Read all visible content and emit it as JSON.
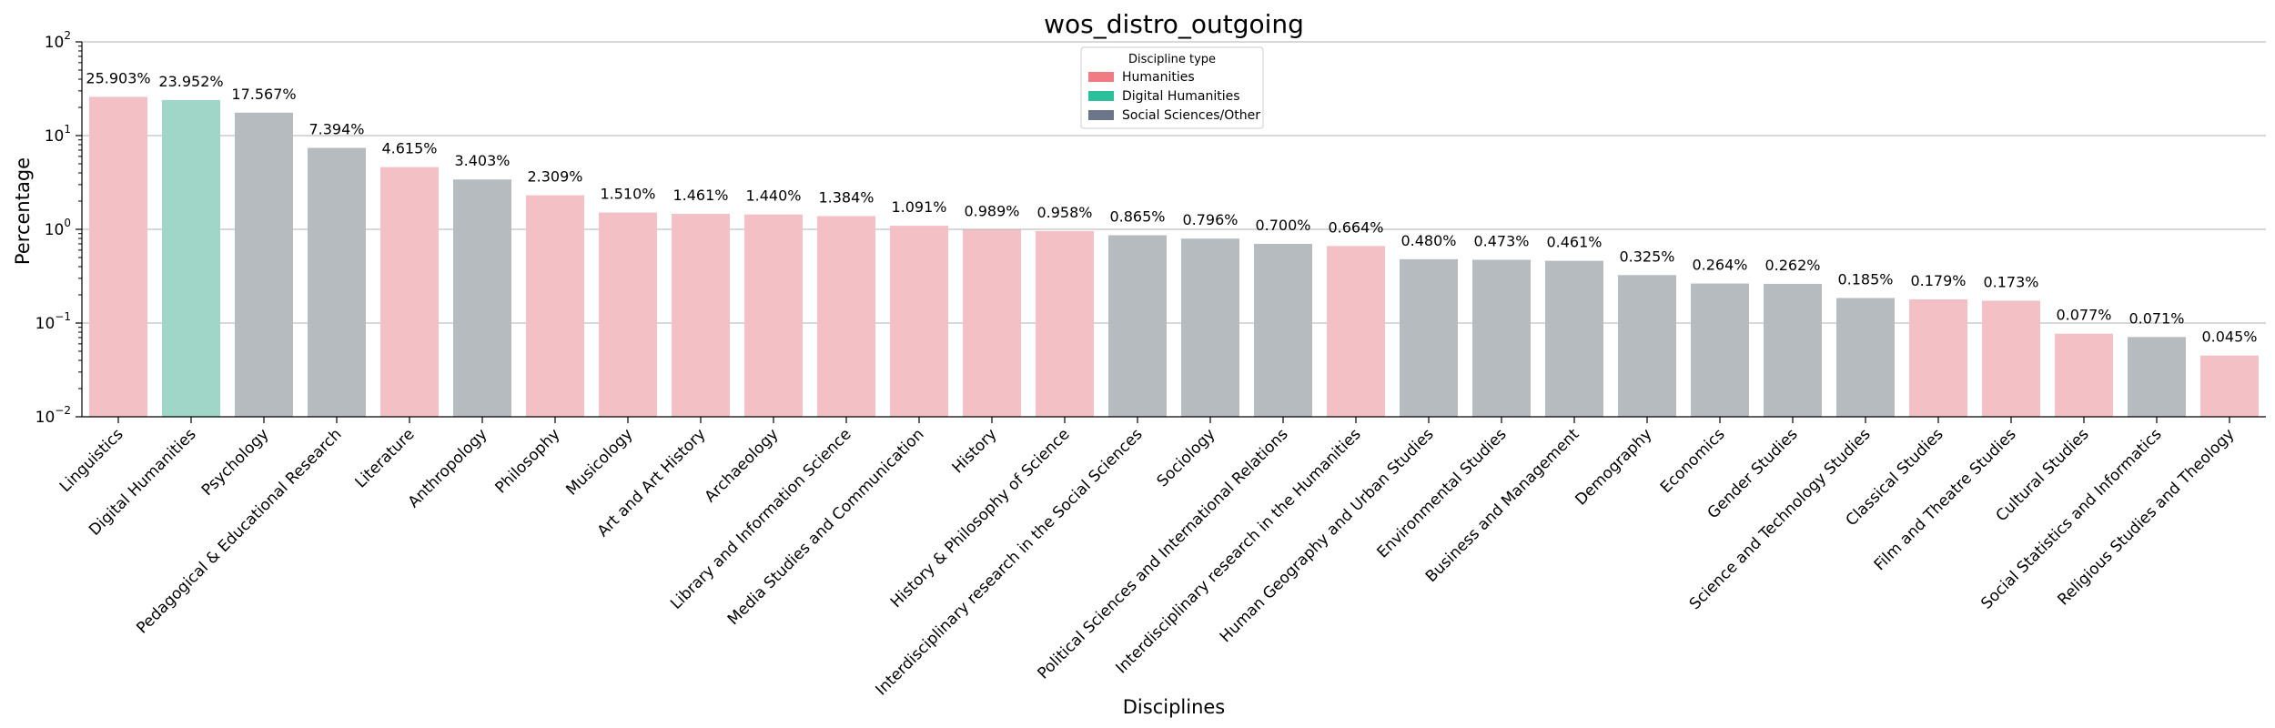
{
  "chart_data": {
    "type": "bar",
    "title": "wos_distro_outgoing",
    "xlabel": "Disciplines",
    "ylabel": "Percentage",
    "yscale": "log",
    "ylim": [
      0.01,
      100
    ],
    "yticks": [
      {
        "value": 0.01,
        "base": "10",
        "exp": "−2"
      },
      {
        "value": 0.1,
        "base": "10",
        "exp": "−1"
      },
      {
        "value": 1,
        "base": "10",
        "exp": "0"
      },
      {
        "value": 10,
        "base": "10",
        "exp": "1"
      },
      {
        "value": 100,
        "base": "10",
        "exp": "2"
      }
    ],
    "grid": "horizontal",
    "legend": {
      "title": "Discipline type",
      "placement": "top-center",
      "entries": [
        {
          "label": "Humanities",
          "color": "#f07b83"
        },
        {
          "label": "Digital Humanities",
          "color": "#2bbf9b"
        },
        {
          "label": "Social Sciences/Other",
          "color": "#6b7788"
        }
      ]
    },
    "bar_colors": {
      "Humanities": "#f2c0c5",
      "Digital Humanities": "#a0d6c7",
      "Social Sciences/Other": "#b6bbbf"
    },
    "categories": [
      "Linguistics",
      "Digital Humanities",
      "Psychology",
      "Pedagogical & Educational Research",
      "Literature",
      "Anthropology",
      "Philosophy",
      "Musicology",
      "Art and Art History",
      "Archaeology",
      "Library and Information Science",
      "Media Studies and Communication",
      "History",
      "History & Philosophy of Science",
      "Interdisciplinary research in the Social Sciences",
      "Sociology",
      "Political Sciences and International Relations",
      "Interdisciplinary research in the Humanities",
      "Human Geography and Urban Studies",
      "Environmental Studies",
      "Business and Management",
      "Demography",
      "Economics",
      "Gender Studies",
      "Science and Technology Studies",
      "Classical Studies",
      "Film and Theatre Studies",
      "Cultural Studies",
      "Social Statistics and Informatics",
      "Religious Studies and Theology"
    ],
    "values": [
      25.903,
      23.952,
      17.567,
      7.394,
      4.615,
      3.403,
      2.309,
      1.51,
      1.461,
      1.44,
      1.384,
      1.091,
      0.989,
      0.958,
      0.865,
      0.796,
      0.7,
      0.664,
      0.48,
      0.473,
      0.461,
      0.325,
      0.264,
      0.262,
      0.185,
      0.179,
      0.173,
      0.077,
      0.071,
      0.045
    ],
    "value_labels": [
      "25.903%",
      "23.952%",
      "17.567%",
      "7.394%",
      "4.615%",
      "3.403%",
      "2.309%",
      "1.510%",
      "1.461%",
      "1.440%",
      "1.384%",
      "1.091%",
      "0.989%",
      "0.958%",
      "0.865%",
      "0.796%",
      "0.700%",
      "0.664%",
      "0.480%",
      "0.473%",
      "0.461%",
      "0.325%",
      "0.264%",
      "0.262%",
      "0.185%",
      "0.179%",
      "0.173%",
      "0.077%",
      "0.071%",
      "0.045%"
    ],
    "types": [
      "Humanities",
      "Digital Humanities",
      "Social Sciences/Other",
      "Social Sciences/Other",
      "Humanities",
      "Social Sciences/Other",
      "Humanities",
      "Humanities",
      "Humanities",
      "Humanities",
      "Humanities",
      "Humanities",
      "Humanities",
      "Humanities",
      "Social Sciences/Other",
      "Social Sciences/Other",
      "Social Sciences/Other",
      "Humanities",
      "Social Sciences/Other",
      "Social Sciences/Other",
      "Social Sciences/Other",
      "Social Sciences/Other",
      "Social Sciences/Other",
      "Social Sciences/Other",
      "Social Sciences/Other",
      "Humanities",
      "Humanities",
      "Humanities",
      "Social Sciences/Other",
      "Humanities"
    ]
  }
}
